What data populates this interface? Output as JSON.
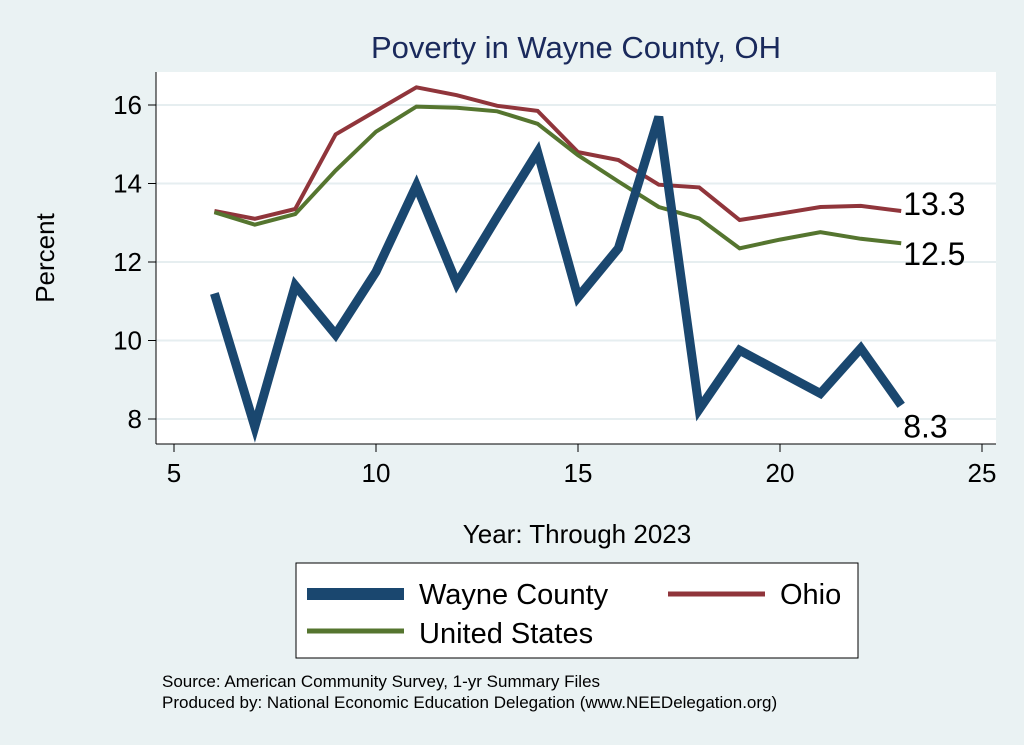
{
  "chart_data": {
    "type": "line",
    "title": "Poverty in Wayne County, OH",
    "xlabel": "Year: Through 2023",
    "ylabel": "Percent",
    "xlim": [
      5,
      25
    ],
    "ylim": [
      7.3,
      16.8
    ],
    "xticks": [
      5,
      10,
      15,
      20,
      25
    ],
    "yticks": [
      8,
      10,
      12,
      14,
      16
    ],
    "grid": true,
    "legend_position": "bottom",
    "x": [
      6,
      7,
      8,
      9,
      10,
      11,
      12,
      13,
      14,
      15,
      16,
      17,
      18,
      19,
      20,
      21,
      22,
      23
    ],
    "series": [
      {
        "name": "Wayne County",
        "color": "#1a476f",
        "width": 9,
        "end_label": "8.3",
        "values": [
          11.2,
          7.8,
          11.4,
          10.15,
          11.75,
          13.95,
          11.45,
          13.15,
          14.8,
          11.1,
          12.35,
          15.7,
          8.25,
          9.75,
          null,
          8.65,
          9.8,
          8.35
        ]
      },
      {
        "name": "Ohio",
        "color": "#90353b",
        "width": 4,
        "end_label": "13.3",
        "values": [
          13.3,
          13.1,
          13.35,
          15.25,
          15.85,
          16.45,
          16.25,
          15.98,
          15.85,
          14.8,
          14.6,
          13.97,
          13.9,
          13.07,
          13.23,
          13.4,
          13.43,
          13.3
        ]
      },
      {
        "name": "United States",
        "color": "#55752f",
        "width": 4,
        "end_label": "12.5",
        "values": [
          13.27,
          12.95,
          13.22,
          14.33,
          15.32,
          15.96,
          15.93,
          15.84,
          15.52,
          14.72,
          14.05,
          13.4,
          13.11,
          12.35,
          12.57,
          12.76,
          12.59,
          12.48
        ]
      }
    ]
  },
  "notes": {
    "source": "Source: American Community Survey, 1-yr Summary Files",
    "producer": "Produced by: National Economic Education Delegation (www.NEEDelegation.org)"
  }
}
